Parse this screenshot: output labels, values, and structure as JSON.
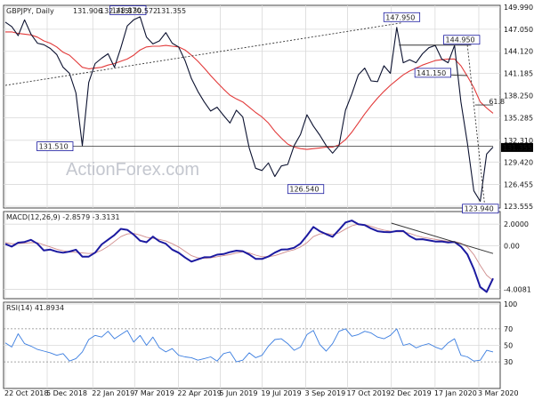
{
  "colors": {
    "price": "#0c1230",
    "sma": "#e23a3a",
    "macd": "#1c1aa0",
    "signal": "#cf8c8c",
    "rsi": "#3a7de0",
    "grid": "#d9d9d9",
    "panel_border": "#444444",
    "price_box": "#000000",
    "label_box_border": "#1a1aa0",
    "label_box_fill": "#ffffff",
    "watermark": "#c4c7cf"
  },
  "watermark": "ActionForex.com",
  "chart_data": [
    {
      "type": "line",
      "title": "GBPJPY, Daily",
      "ohlc": {
        "open": "131.906",
        "high": "132.215",
        "low": "130.572",
        "close": "131.355"
      },
      "price_label": "131.355",
      "y_ticks": [
        "149.990",
        "147.050",
        "144.120",
        "141.185",
        "138.250",
        "135.285",
        "132.310",
        "129.420",
        "126.455",
        "123.555"
      ],
      "ylim": [
        123.555,
        149.99
      ],
      "x_ticks": [
        "22 Oct 2018",
        "5 Dec 2018",
        "22 Jan 2019",
        "7 Mar 2019",
        "22 Apr 2019",
        "5 Jun 2019",
        "19 Jul 2019",
        "3 Sep 2019",
        "17 Oct 2019",
        "2 Dec 2019",
        "17 Jan 2020",
        "3 Mar 2020"
      ],
      "annotations": [
        {
          "text": "148.870",
          "x": "28 Feb 2019",
          "y": 148.87
        },
        {
          "text": "131.510",
          "x": "3 Jan 2019",
          "y": 131.51
        },
        {
          "text": "126.540",
          "x": "3 Sep 2019",
          "y": 126.54
        },
        {
          "text": "147.950",
          "x": "13 Dec 2019",
          "y": 147.95
        },
        {
          "text": "144.950",
          "x": "14 Feb 2020",
          "y": 144.95
        },
        {
          "text": "141.150",
          "x": "7 Jan 2020",
          "y": 141.15
        },
        {
          "text": "123.940",
          "x": "9 Mar 2020",
          "y": 123.94
        },
        {
          "text": "61.8",
          "x": "23 Mar 2020",
          "y": 137.0
        }
      ],
      "series": [
        {
          "values": [
            148.0,
            147.4,
            146.2,
            148.3,
            146.4,
            145.2,
            145.0,
            144.5,
            143.7,
            142.0,
            141.2,
            138.6,
            131.6,
            140.0,
            142.5,
            143.2,
            143.8,
            142.0,
            144.6,
            147.5,
            148.3,
            148.7,
            146.0,
            145.1,
            145.5,
            146.6,
            145.2,
            144.7,
            142.9,
            140.5,
            138.8,
            137.4,
            136.2,
            136.7,
            135.6,
            134.6,
            136.3,
            135.4,
            131.3,
            128.6,
            128.3,
            129.3,
            127.5,
            128.9,
            129.1,
            131.6,
            133.1,
            135.7,
            134.2,
            133.0,
            131.6,
            130.6,
            131.6,
            136.3,
            138.5,
            141.0,
            141.9,
            140.2,
            140.1,
            142.2,
            141.2,
            147.3,
            142.6,
            143.0,
            142.6,
            143.8,
            144.6,
            144.9,
            143.1,
            142.6,
            144.9,
            137.4,
            131.9,
            125.6,
            124.2,
            130.5,
            131.4
          ]
        },
        {
          "values": [
            146.7,
            146.7,
            146.5,
            146.4,
            146.3,
            146.0,
            145.5,
            145.2,
            144.7,
            144.0,
            143.6,
            142.8,
            142.0,
            141.8,
            141.9,
            142.0,
            142.3,
            142.5,
            142.8,
            143.1,
            143.6,
            144.3,
            144.7,
            144.8,
            144.8,
            144.9,
            144.8,
            144.7,
            144.3,
            143.6,
            142.8,
            141.9,
            140.9,
            140.0,
            139.1,
            138.3,
            137.8,
            137.4,
            136.7,
            136.0,
            135.4,
            134.6,
            133.5,
            132.6,
            131.8,
            131.4,
            131.2,
            131.1,
            131.2,
            131.3,
            131.4,
            131.4,
            131.7,
            132.4,
            133.4,
            134.6,
            135.8,
            136.9,
            137.9,
            138.8,
            139.6,
            140.3,
            141.0,
            141.5,
            141.9,
            142.3,
            142.6,
            142.9,
            143.0,
            143.1,
            143.1,
            142.2,
            140.8,
            139.3,
            137.4,
            136.6,
            135.9
          ]
        }
      ]
    },
    {
      "type": "line",
      "title": "MACD(12,26,9) -2.8579 -3.3131",
      "y_ticks": [
        "2.0000",
        "0.00",
        "-4.0081"
      ],
      "ylim": [
        -4.7,
        3.0
      ],
      "series": [
        {
          "values": [
            0.18,
            -0.06,
            0.3,
            0.36,
            0.56,
            0.2,
            -0.42,
            -0.34,
            -0.53,
            -0.63,
            -0.52,
            -0.35,
            -0.99,
            -0.99,
            -0.62,
            0.13,
            0.57,
            1.0,
            1.57,
            1.48,
            1.04,
            0.48,
            0.34,
            0.85,
            0.42,
            0.2,
            -0.34,
            -0.63,
            -1.07,
            -1.45,
            -1.24,
            -1.05,
            -1.03,
            -0.81,
            -0.75,
            -0.57,
            -0.44,
            -0.49,
            -0.79,
            -1.19,
            -1.2,
            -0.98,
            -0.62,
            -0.34,
            -0.32,
            -0.17,
            0.22,
            0.95,
            1.75,
            1.35,
            1.08,
            0.84,
            1.48,
            2.16,
            2.34,
            1.99,
            1.92,
            1.6,
            1.35,
            1.28,
            1.26,
            1.37,
            1.37,
            0.9,
            0.59,
            0.62,
            0.51,
            0.4,
            0.41,
            0.31,
            0.36,
            -0.06,
            -0.79,
            -2.13,
            -3.79,
            -4.24,
            -3.0
          ]
        },
        {
          "values": [
            0.3,
            0.2,
            0.2,
            0.25,
            0.3,
            0.3,
            0.1,
            -0.1,
            -0.3,
            -0.45,
            -0.55,
            -0.6,
            -0.65,
            -0.7,
            -0.65,
            -0.4,
            -0.05,
            0.4,
            0.85,
            1.1,
            1.15,
            1.0,
            0.8,
            0.7,
            0.6,
            0.45,
            0.2,
            -0.1,
            -0.5,
            -0.9,
            -1.1,
            -1.15,
            -1.1,
            -1.0,
            -0.9,
            -0.8,
            -0.65,
            -0.55,
            -0.65,
            -0.85,
            -1.0,
            -1.0,
            -0.9,
            -0.7,
            -0.5,
            -0.35,
            -0.1,
            0.3,
            0.85,
            1.1,
            1.15,
            1.05,
            1.2,
            1.55,
            1.85,
            2.0,
            1.95,
            1.8,
            1.6,
            1.45,
            1.35,
            1.3,
            1.3,
            1.15,
            0.95,
            0.8,
            0.7,
            0.6,
            0.5,
            0.42,
            0.4,
            0.25,
            -0.1,
            -0.8,
            -1.8,
            -2.7,
            -3.2
          ]
        }
      ]
    },
    {
      "type": "line",
      "title": "RSI(14) 41.8934",
      "y_ticks": [
        "100",
        "70",
        "50",
        "30"
      ],
      "ylim": [
        0,
        100
      ],
      "series": [
        {
          "values": [
            53,
            48,
            64,
            52,
            49,
            45,
            43,
            41,
            38,
            40,
            31,
            34,
            42,
            57,
            62,
            60,
            67,
            58,
            63,
            68,
            54,
            62,
            50,
            60,
            47,
            42,
            46,
            38,
            36,
            35,
            32,
            34,
            36,
            31,
            40,
            42,
            30,
            32,
            41,
            35,
            38,
            49,
            57,
            58,
            52,
            44,
            48,
            63,
            68,
            51,
            43,
            52,
            67,
            70,
            61,
            63,
            67,
            65,
            60,
            58,
            62,
            70,
            50,
            52,
            47,
            50,
            52,
            48,
            45,
            53,
            58,
            38,
            36,
            31,
            32,
            44,
            42
          ]
        }
      ]
    }
  ]
}
